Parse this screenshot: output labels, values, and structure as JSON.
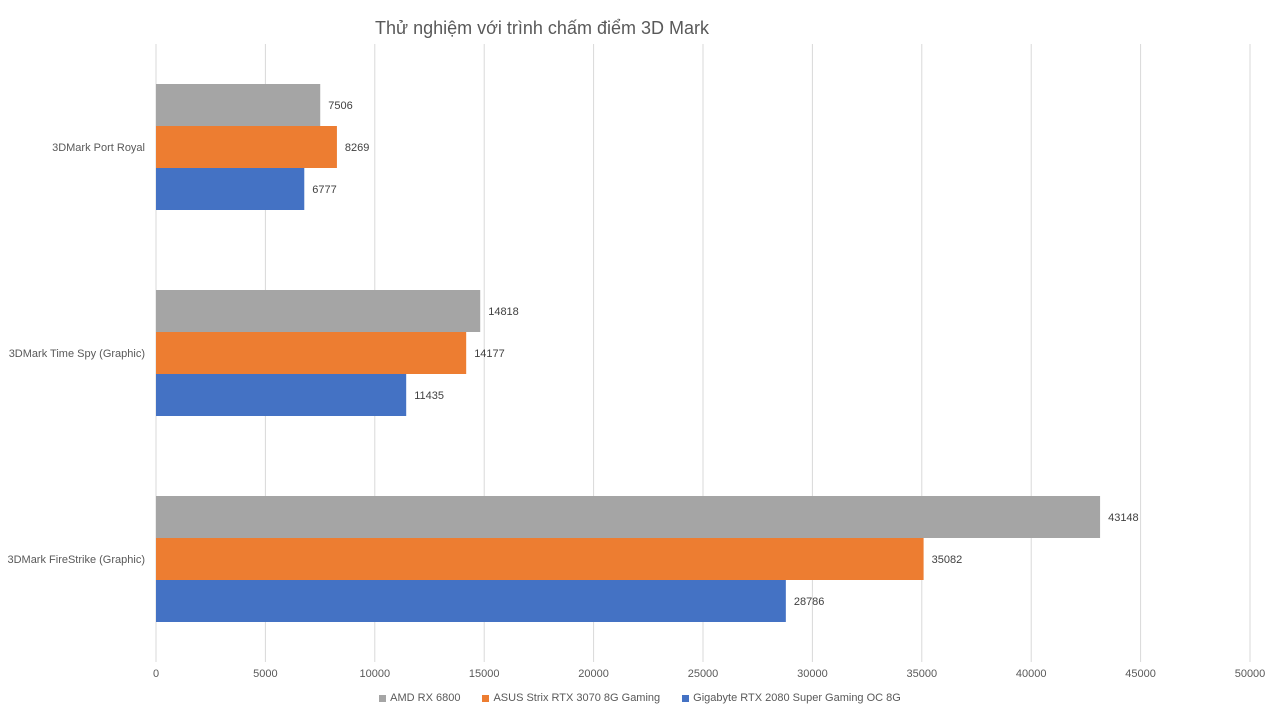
{
  "chart_data": {
    "type": "bar",
    "orientation": "horizontal",
    "title": "Thử nghiệm với trình chấm điểm 3D Mark",
    "xlabel": "",
    "ylabel": "",
    "categories": [
      "3DMark FireStrike (Graphic)",
      "3DMark Time Spy (Graphic)",
      "3DMark Port Royal"
    ],
    "series": [
      {
        "name": "Gigabyte RTX 2080 Super Gaming OC 8G",
        "color": "#4472C4",
        "values": [
          28786,
          11435,
          6777
        ]
      },
      {
        "name": "ASUS Strix RTX 3070 8G Gaming",
        "color": "#ED7D31",
        "values": [
          35082,
          14177,
          8269
        ]
      },
      {
        "name": "AMD RX 6800",
        "color": "#A5A5A5",
        "values": [
          43148,
          14818,
          7506
        ]
      }
    ],
    "xlim": [
      0,
      50000
    ],
    "xticks": [
      "0",
      "5000",
      "10000",
      "15000",
      "20000",
      "25000",
      "30000",
      "35000",
      "40000",
      "45000",
      "50000"
    ],
    "grid": true,
    "legend_position": "bottom",
    "legend_order": [
      "AMD RX 6800",
      "ASUS Strix RTX 3070 8G Gaming",
      "Gigabyte RTX 2080 Super Gaming OC 8G"
    ]
  }
}
